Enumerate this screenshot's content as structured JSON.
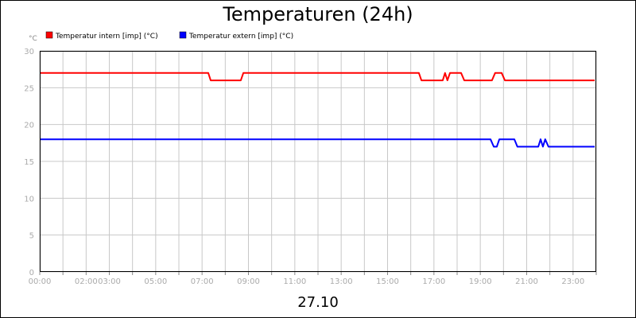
{
  "chart_data": {
    "type": "line",
    "title": "Temperaturen (24h)",
    "y_label": "°C",
    "x_label": "27.10",
    "xlim": [
      0,
      24
    ],
    "ylim": [
      0,
      30
    ],
    "yticks": [
      0,
      5,
      10,
      15,
      20,
      25,
      30
    ],
    "xticks": [
      {
        "value": 0,
        "label": "00:00"
      },
      {
        "value": 1,
        "label": null
      },
      {
        "value": 2,
        "label": "02:00"
      },
      {
        "value": 3,
        "label": "03:00"
      },
      {
        "value": 4,
        "label": null
      },
      {
        "value": 5,
        "label": "05:00"
      },
      {
        "value": 6,
        "label": null
      },
      {
        "value": 7,
        "label": "07:00"
      },
      {
        "value": 8,
        "label": null
      },
      {
        "value": 9,
        "label": "09:00"
      },
      {
        "value": 10,
        "label": null
      },
      {
        "value": 11,
        "label": "11:00"
      },
      {
        "value": 12,
        "label": null
      },
      {
        "value": 13,
        "label": "13:00"
      },
      {
        "value": 14,
        "label": null
      },
      {
        "value": 15,
        "label": "15:00"
      },
      {
        "value": 16,
        "label": null
      },
      {
        "value": 17,
        "label": "17:00"
      },
      {
        "value": 18,
        "label": null
      },
      {
        "value": 19,
        "label": "19:00"
      },
      {
        "value": 20,
        "label": null
      },
      {
        "value": 21,
        "label": "21:00"
      },
      {
        "value": 22,
        "label": null
      },
      {
        "value": 23,
        "label": "23:00"
      },
      {
        "value": 24,
        "label": null
      }
    ],
    "grid": true,
    "series": [
      {
        "name": "Temperatur intern [imp] (°C)",
        "color": "#ff0000",
        "x": [
          0,
          7.27,
          7.37,
          8.67,
          8.78,
          16.35,
          16.46,
          17.38,
          17.48,
          17.58,
          17.69,
          18.17,
          18.31,
          19.5,
          19.64,
          19.92,
          20.06,
          23.93
        ],
        "values": [
          27,
          27,
          26,
          26,
          27,
          27,
          26,
          26,
          27,
          26,
          27,
          27,
          26,
          26,
          27,
          27,
          26,
          26
        ]
      },
      {
        "name": "Temperatur extern [imp] (°C)",
        "color": "#0000ff",
        "x": [
          0,
          19.44,
          19.58,
          19.71,
          19.82,
          20.47,
          20.6,
          21.5,
          21.6,
          21.7,
          21.8,
          21.94,
          23.93
        ],
        "values": [
          18,
          18,
          17,
          17,
          18,
          18,
          17,
          17,
          18,
          17,
          18,
          17,
          17
        ]
      }
    ]
  }
}
